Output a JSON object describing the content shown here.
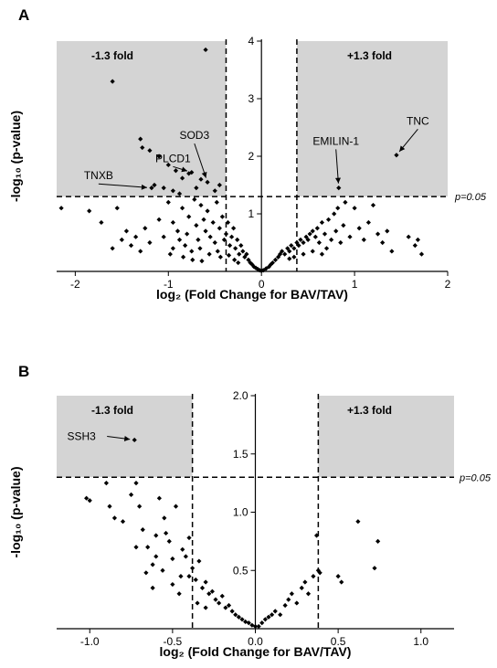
{
  "chart_data": [
    {
      "panel_label": "A",
      "type": "scatter",
      "xlabel": "log₂ (Fold Change for BAV/TAV)",
      "ylabel": "-log₁₀ (p-value)",
      "xlim": [
        -2.2,
        2.0
      ],
      "ylim": [
        0,
        4
      ],
      "xticks": [
        -2,
        -1,
        0,
        1,
        2
      ],
      "yticks": [
        1,
        2,
        3,
        4
      ],
      "fold_threshold": 0.38,
      "p_threshold": 1.3,
      "region_labels": {
        "left": "-1.3 fold",
        "right": "+1.3 fold"
      },
      "threshold_label": "p=0.05",
      "point_color": "#000000",
      "shade_color": "#d4d4d4",
      "annotations": [
        {
          "text": "TNC",
          "point": [
            1.45,
            2.02
          ],
          "label_at": [
            1.68,
            2.55
          ]
        },
        {
          "text": "EMILIN-1",
          "point": [
            0.83,
            1.45
          ],
          "label_at": [
            0.8,
            2.2
          ]
        },
        {
          "text": "SOD3",
          "point": [
            -0.58,
            1.55
          ],
          "label_at": [
            -0.72,
            2.3
          ]
        },
        {
          "text": "PLCD1",
          "point": [
            -0.75,
            1.72
          ],
          "label_at": [
            -0.95,
            1.9
          ]
        },
        {
          "text": "TNXB",
          "point": [
            -1.18,
            1.45
          ],
          "label_at": [
            -1.75,
            1.6
          ]
        }
      ],
      "points": [
        [
          -0.6,
          3.85
        ],
        [
          -1.6,
          3.3
        ],
        [
          -1.3,
          2.3
        ],
        [
          -1.28,
          2.15
        ],
        [
          -1.2,
          2.1
        ],
        [
          -1.1,
          2.0
        ],
        [
          -1.0,
          1.85
        ],
        [
          -0.92,
          1.75
        ],
        [
          -0.85,
          1.62
        ],
        [
          -0.78,
          1.7
        ],
        [
          -0.75,
          1.72
        ],
        [
          -0.65,
          1.6
        ],
        [
          -0.58,
          1.55
        ],
        [
          -1.15,
          1.5
        ],
        [
          -1.05,
          1.45
        ],
        [
          -0.95,
          1.4
        ],
        [
          -0.88,
          1.35
        ],
        [
          -0.7,
          1.45
        ],
        [
          -0.5,
          1.4
        ],
        [
          -0.45,
          1.5
        ],
        [
          -1.18,
          1.45
        ],
        [
          -2.15,
          1.1
        ],
        [
          -1.85,
          1.05
        ],
        [
          -1.72,
          0.85
        ],
        [
          -1.55,
          1.1
        ],
        [
          -1.5,
          0.55
        ],
        [
          -1.45,
          0.7
        ],
        [
          -1.35,
          0.6
        ],
        [
          -1.25,
          0.75
        ],
        [
          -1.2,
          0.5
        ],
        [
          -1.1,
          0.9
        ],
        [
          -1.05,
          0.6
        ],
        [
          -1.0,
          1.2
        ],
        [
          -0.95,
          0.85
        ],
        [
          -0.9,
          0.7
        ],
        [
          -0.85,
          1.1
        ],
        [
          -0.8,
          0.65
        ],
        [
          -0.78,
          0.95
        ],
        [
          -0.72,
          1.25
        ],
        [
          -0.7,
          0.8
        ],
        [
          -0.68,
          0.55
        ],
        [
          -0.65,
          1.15
        ],
        [
          -0.62,
          0.9
        ],
        [
          -0.6,
          0.7
        ],
        [
          -0.58,
          1.05
        ],
        [
          -0.55,
          0.6
        ],
        [
          -0.52,
          0.85
        ],
        [
          -0.5,
          0.5
        ],
        [
          -0.48,
          1.2
        ],
        [
          -0.45,
          0.75
        ],
        [
          -0.42,
          0.95
        ],
        [
          -0.4,
          0.55
        ],
        [
          -0.38,
          0.65
        ],
        [
          -0.36,
          0.85
        ],
        [
          -0.34,
          0.45
        ],
        [
          -0.32,
          0.6
        ],
        [
          -0.3,
          0.75
        ],
        [
          -0.28,
          0.4
        ],
        [
          -0.26,
          0.55
        ],
        [
          -0.24,
          0.3
        ],
        [
          -0.22,
          0.45
        ],
        [
          -0.2,
          0.35
        ],
        [
          -0.18,
          0.25
        ],
        [
          -0.16,
          0.3
        ],
        [
          -0.14,
          0.2
        ],
        [
          -0.12,
          0.15
        ],
        [
          -0.1,
          0.12
        ],
        [
          -0.08,
          0.08
        ],
        [
          -0.06,
          0.06
        ],
        [
          -0.04,
          0.04
        ],
        [
          -0.02,
          0.02
        ],
        [
          0.0,
          0.01
        ],
        [
          -0.95,
          0.4
        ],
        [
          -0.88,
          0.55
        ],
        [
          -0.82,
          0.45
        ],
        [
          -0.75,
          0.35
        ],
        [
          -0.66,
          0.4
        ],
        [
          -0.56,
          0.3
        ],
        [
          -0.47,
          0.35
        ],
        [
          -0.44,
          0.25
        ],
        [
          -0.35,
          0.28
        ],
        [
          -0.29,
          0.2
        ],
        [
          -0.25,
          0.15
        ],
        [
          -1.4,
          0.45
        ],
        [
          -1.3,
          0.35
        ],
        [
          -1.6,
          0.4
        ],
        [
          -0.98,
          0.3
        ],
        [
          -0.84,
          0.25
        ],
        [
          -0.74,
          0.2
        ],
        [
          -0.64,
          0.18
        ],
        [
          0.02,
          0.02
        ],
        [
          0.05,
          0.05
        ],
        [
          0.08,
          0.08
        ],
        [
          0.1,
          0.12
        ],
        [
          0.12,
          0.15
        ],
        [
          0.15,
          0.2
        ],
        [
          0.18,
          0.25
        ],
        [
          0.2,
          0.3
        ],
        [
          0.22,
          0.35
        ],
        [
          0.25,
          0.3
        ],
        [
          0.28,
          0.4
        ],
        [
          0.3,
          0.35
        ],
        [
          0.32,
          0.45
        ],
        [
          0.35,
          0.4
        ],
        [
          0.38,
          0.5
        ],
        [
          0.4,
          0.45
        ],
        [
          0.42,
          0.55
        ],
        [
          0.45,
          0.5
        ],
        [
          0.48,
          0.6
        ],
        [
          0.5,
          0.55
        ],
        [
          0.52,
          0.65
        ],
        [
          0.55,
          0.7
        ],
        [
          0.58,
          0.6
        ],
        [
          0.6,
          0.75
        ],
        [
          0.62,
          0.5
        ],
        [
          0.65,
          0.85
        ],
        [
          0.68,
          0.65
        ],
        [
          0.7,
          0.4
        ],
        [
          0.72,
          0.9
        ],
        [
          0.75,
          0.55
        ],
        [
          0.78,
          1.0
        ],
        [
          0.8,
          0.7
        ],
        [
          0.82,
          1.1
        ],
        [
          0.85,
          0.5
        ],
        [
          0.88,
          0.8
        ],
        [
          0.9,
          1.2
        ],
        [
          0.95,
          0.6
        ],
        [
          1.0,
          1.1
        ],
        [
          1.05,
          0.75
        ],
        [
          1.1,
          0.55
        ],
        [
          1.15,
          0.85
        ],
        [
          1.2,
          1.15
        ],
        [
          1.25,
          0.65
        ],
        [
          1.3,
          0.5
        ],
        [
          1.35,
          0.7
        ],
        [
          0.45,
          0.3
        ],
        [
          0.55,
          0.35
        ],
        [
          0.65,
          0.3
        ],
        [
          0.3,
          0.22
        ],
        [
          0.35,
          0.25
        ],
        [
          0.83,
          1.45
        ],
        [
          1.45,
          2.02
        ],
        [
          1.65,
          0.45
        ],
        [
          1.68,
          0.55
        ],
        [
          1.72,
          0.3
        ],
        [
          1.58,
          0.6
        ],
        [
          1.4,
          0.35
        ]
      ]
    },
    {
      "panel_label": "B",
      "type": "scatter",
      "xlabel": "log₂ (Fold Change for BAV/TAV)",
      "ylabel": "-log₁₀ (p-value)",
      "xlim": [
        -1.2,
        1.2
      ],
      "ylim": [
        0,
        2.0
      ],
      "xticks": [
        -1.0,
        -0.5,
        0.0,
        0.5,
        1.0
      ],
      "yticks": [
        0.5,
        1.0,
        1.5,
        2.0
      ],
      "fold_threshold": 0.38,
      "p_threshold": 1.3,
      "region_labels": {
        "left": "-1.3 fold",
        "right": "+1.3 fold"
      },
      "threshold_label": "p=0.05",
      "point_color": "#000000",
      "shade_color": "#d4d4d4",
      "annotations": [
        {
          "text": "SSH3",
          "point": [
            -0.73,
            1.62
          ],
          "label_at": [
            -1.05,
            1.62
          ]
        }
      ],
      "points": [
        [
          -0.73,
          1.62
        ],
        [
          -1.02,
          1.12
        ],
        [
          -1.0,
          1.1
        ],
        [
          -0.9,
          1.25
        ],
        [
          -0.88,
          1.05
        ],
        [
          -0.85,
          0.95
        ],
        [
          -0.8,
          0.92
        ],
        [
          -0.75,
          1.15
        ],
        [
          -0.72,
          1.25
        ],
        [
          -0.7,
          1.05
        ],
        [
          -0.68,
          0.85
        ],
        [
          -0.65,
          0.7
        ],
        [
          -0.62,
          0.55
        ],
        [
          -0.6,
          0.8
        ],
        [
          -0.58,
          1.12
        ],
        [
          -0.55,
          0.95
        ],
        [
          -0.52,
          0.75
        ],
        [
          -0.5,
          0.6
        ],
        [
          -0.48,
          1.05
        ],
        [
          -0.45,
          0.45
        ],
        [
          -0.42,
          0.62
        ],
        [
          -0.4,
          0.78
        ],
        [
          -0.38,
          0.52
        ],
        [
          -0.36,
          0.42
        ],
        [
          -0.34,
          0.58
        ],
        [
          -0.32,
          0.35
        ],
        [
          -0.3,
          0.4
        ],
        [
          -0.28,
          0.3
        ],
        [
          -0.26,
          0.32
        ],
        [
          -0.24,
          0.25
        ],
        [
          -0.22,
          0.22
        ],
        [
          -0.2,
          0.28
        ],
        [
          -0.18,
          0.18
        ],
        [
          -0.16,
          0.2
        ],
        [
          -0.14,
          0.15
        ],
        [
          -0.12,
          0.12
        ],
        [
          -0.1,
          0.1
        ],
        [
          -0.08,
          0.08
        ],
        [
          -0.06,
          0.06
        ],
        [
          -0.04,
          0.05
        ],
        [
          -0.02,
          0.03
        ],
        [
          0.0,
          0.02
        ],
        [
          -0.72,
          0.7
        ],
        [
          -0.66,
          0.48
        ],
        [
          -0.56,
          0.5
        ],
        [
          -0.5,
          0.38
        ],
        [
          -0.46,
          0.3
        ],
        [
          -0.44,
          0.68
        ],
        [
          -0.4,
          0.45
        ],
        [
          -0.35,
          0.22
        ],
        [
          -0.3,
          0.18
        ],
        [
          -0.62,
          0.35
        ],
        [
          -0.6,
          0.62
        ],
        [
          -0.54,
          0.82
        ],
        [
          0.02,
          0.02
        ],
        [
          0.04,
          0.05
        ],
        [
          0.06,
          0.08
        ],
        [
          0.08,
          0.1
        ],
        [
          0.1,
          0.12
        ],
        [
          0.12,
          0.15
        ],
        [
          0.15,
          0.12
        ],
        [
          0.18,
          0.2
        ],
        [
          0.2,
          0.25
        ],
        [
          0.22,
          0.3
        ],
        [
          0.25,
          0.22
        ],
        [
          0.28,
          0.35
        ],
        [
          0.3,
          0.4
        ],
        [
          0.32,
          0.3
        ],
        [
          0.35,
          0.45
        ],
        [
          0.37,
          0.8
        ],
        [
          0.38,
          0.5
        ],
        [
          0.39,
          0.48
        ],
        [
          0.5,
          0.45
        ],
        [
          0.52,
          0.4
        ],
        [
          0.62,
          0.92
        ],
        [
          0.72,
          0.52
        ],
        [
          0.74,
          0.75
        ]
      ]
    }
  ]
}
